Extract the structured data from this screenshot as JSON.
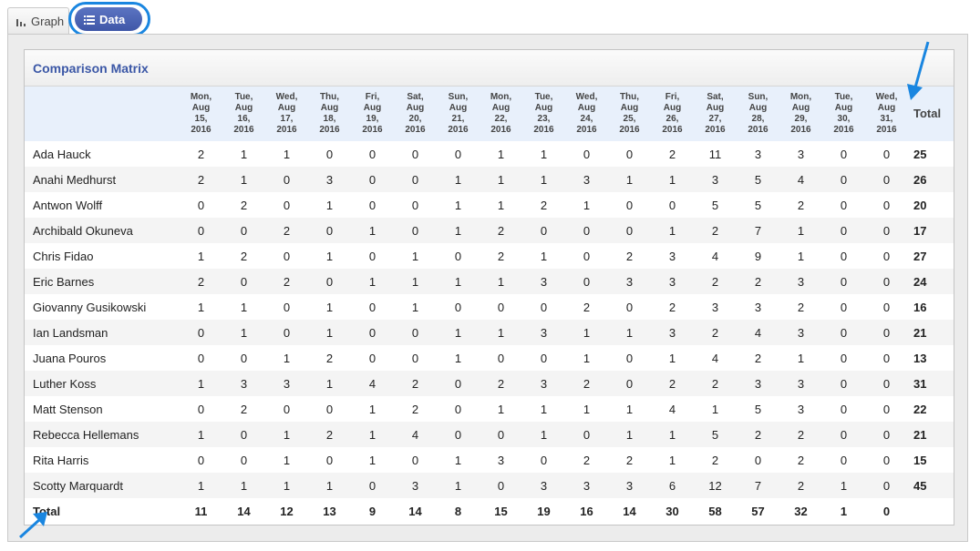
{
  "tabs": {
    "graph_label": "Graph",
    "data_label": "Data"
  },
  "panel": {
    "title": "Comparison Matrix"
  },
  "matrix": {
    "columns": [
      [
        "Mon,",
        "Aug",
        "15,",
        "2016"
      ],
      [
        "Tue,",
        "Aug",
        "16,",
        "2016"
      ],
      [
        "Wed,",
        "Aug",
        "17,",
        "2016"
      ],
      [
        "Thu,",
        "Aug",
        "18,",
        "2016"
      ],
      [
        "Fri,",
        "Aug",
        "19,",
        "2016"
      ],
      [
        "Sat,",
        "Aug",
        "20,",
        "2016"
      ],
      [
        "Sun,",
        "Aug",
        "21,",
        "2016"
      ],
      [
        "Mon,",
        "Aug",
        "22,",
        "2016"
      ],
      [
        "Tue,",
        "Aug",
        "23,",
        "2016"
      ],
      [
        "Wed,",
        "Aug",
        "24,",
        "2016"
      ],
      [
        "Thu,",
        "Aug",
        "25,",
        "2016"
      ],
      [
        "Fri,",
        "Aug",
        "26,",
        "2016"
      ],
      [
        "Sat,",
        "Aug",
        "27,",
        "2016"
      ],
      [
        "Sun,",
        "Aug",
        "28,",
        "2016"
      ],
      [
        "Mon,",
        "Aug",
        "29,",
        "2016"
      ],
      [
        "Tue,",
        "Aug",
        "30,",
        "2016"
      ],
      [
        "Wed,",
        "Aug",
        "31,",
        "2016"
      ]
    ],
    "total_header": "Total",
    "rows": [
      {
        "name": "Ada Hauck",
        "values": [
          2,
          1,
          1,
          0,
          0,
          0,
          0,
          1,
          1,
          0,
          0,
          2,
          11,
          3,
          3,
          0,
          0
        ],
        "total": 25
      },
      {
        "name": "Anahi Medhurst",
        "values": [
          2,
          1,
          0,
          3,
          0,
          0,
          1,
          1,
          1,
          3,
          1,
          1,
          3,
          5,
          4,
          0,
          0
        ],
        "total": 26
      },
      {
        "name": "Antwon Wolff",
        "values": [
          0,
          2,
          0,
          1,
          0,
          0,
          1,
          1,
          2,
          1,
          0,
          0,
          5,
          5,
          2,
          0,
          0
        ],
        "total": 20
      },
      {
        "name": "Archibald Okuneva",
        "values": [
          0,
          0,
          2,
          0,
          1,
          0,
          1,
          2,
          0,
          0,
          0,
          1,
          2,
          7,
          1,
          0,
          0
        ],
        "total": 17
      },
      {
        "name": "Chris Fidao",
        "values": [
          1,
          2,
          0,
          1,
          0,
          1,
          0,
          2,
          1,
          0,
          2,
          3,
          4,
          9,
          1,
          0,
          0
        ],
        "total": 27
      },
      {
        "name": "Eric Barnes",
        "values": [
          2,
          0,
          2,
          0,
          1,
          1,
          1,
          1,
          3,
          0,
          3,
          3,
          2,
          2,
          3,
          0,
          0
        ],
        "total": 24
      },
      {
        "name": "Giovanny Gusikowski",
        "values": [
          1,
          1,
          0,
          1,
          0,
          1,
          0,
          0,
          0,
          2,
          0,
          2,
          3,
          3,
          2,
          0,
          0
        ],
        "total": 16
      },
      {
        "name": "Ian Landsman",
        "values": [
          0,
          1,
          0,
          1,
          0,
          0,
          1,
          1,
          3,
          1,
          1,
          3,
          2,
          4,
          3,
          0,
          0
        ],
        "total": 21
      },
      {
        "name": "Juana Pouros",
        "values": [
          0,
          0,
          1,
          2,
          0,
          0,
          1,
          0,
          0,
          1,
          0,
          1,
          4,
          2,
          1,
          0,
          0
        ],
        "total": 13
      },
      {
        "name": "Luther Koss",
        "values": [
          1,
          3,
          3,
          1,
          4,
          2,
          0,
          2,
          3,
          2,
          0,
          2,
          2,
          3,
          3,
          0,
          0
        ],
        "total": 31
      },
      {
        "name": "Matt Stenson",
        "values": [
          0,
          2,
          0,
          0,
          1,
          2,
          0,
          1,
          1,
          1,
          1,
          4,
          1,
          5,
          3,
          0,
          0
        ],
        "total": 22
      },
      {
        "name": "Rebecca Hellemans",
        "values": [
          1,
          0,
          1,
          2,
          1,
          4,
          0,
          0,
          1,
          0,
          1,
          1,
          5,
          2,
          2,
          0,
          0
        ],
        "total": 21
      },
      {
        "name": "Rita Harris",
        "values": [
          0,
          0,
          1,
          0,
          1,
          0,
          1,
          3,
          0,
          2,
          2,
          1,
          2,
          0,
          2,
          0,
          0
        ],
        "total": 15
      },
      {
        "name": "Scotty Marquardt",
        "values": [
          1,
          1,
          1,
          1,
          0,
          3,
          1,
          0,
          3,
          3,
          3,
          6,
          12,
          7,
          2,
          1,
          0
        ],
        "total": 45
      }
    ],
    "total_row": {
      "label": "Total",
      "values": [
        11,
        14,
        12,
        13,
        9,
        14,
        8,
        15,
        19,
        16,
        14,
        30,
        58,
        57,
        32,
        1,
        0
      ]
    }
  },
  "colors": {
    "accent": "#3b57a6",
    "tab_active": "#4a62b3",
    "annotation": "#1a86e0",
    "header_bg": "#e8f0fb"
  },
  "icons": {
    "graph_tab": "bar-chart-icon",
    "data_tab": "list-icon"
  }
}
